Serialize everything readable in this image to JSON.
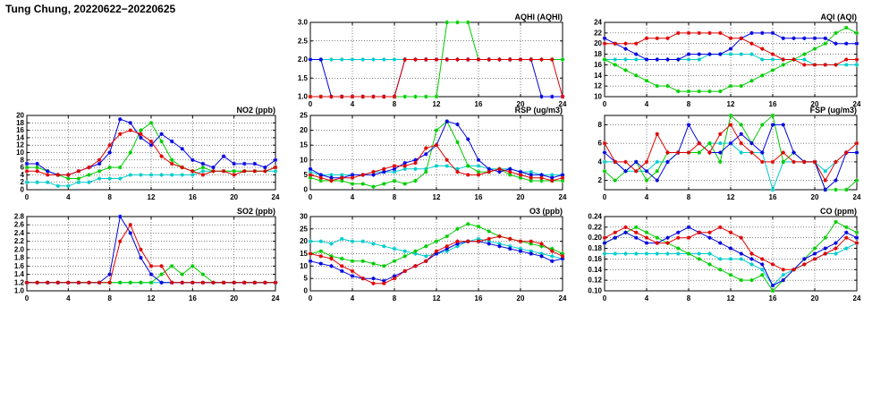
{
  "page": {
    "title": "Tung Chung, 20220622−20220625"
  },
  "hours": [
    0,
    1,
    2,
    3,
    4,
    5,
    6,
    7,
    8,
    9,
    10,
    11,
    12,
    13,
    14,
    15,
    16,
    17,
    18,
    19,
    20,
    21,
    22,
    23,
    24
  ],
  "x_ticks": [
    0,
    4,
    8,
    12,
    16,
    20,
    24
  ],
  "colors": {
    "blue": "#0000e0",
    "red": "#e00000",
    "green": "#00cc00",
    "cyan": "#00cccc"
  },
  "chart_data": [
    {
      "id": "aqhi",
      "type": "line",
      "title": "AQHI (AQHI)",
      "ylim": [
        1,
        3
      ],
      "yticks": [
        1,
        1.5,
        2,
        2.5,
        3
      ],
      "ydec": 1,
      "series": [
        {
          "name": "cyan",
          "color": "cyan",
          "values": [
            2,
            2,
            2,
            2,
            2,
            2,
            2,
            2,
            2,
            2,
            2,
            2,
            2,
            2,
            2,
            2,
            2,
            2,
            2,
            2,
            2,
            2,
            2,
            2,
            2
          ]
        },
        {
          "name": "green",
          "color": "green",
          "values": [
            1,
            1,
            1,
            1,
            1,
            1,
            1,
            1,
            1,
            1,
            1,
            1,
            1,
            3,
            3,
            3,
            2,
            2,
            2,
            2,
            2,
            2,
            2,
            2,
            2
          ]
        },
        {
          "name": "blue",
          "color": "blue",
          "values": [
            2,
            2,
            1,
            1,
            1,
            1,
            1,
            1,
            1,
            2,
            2,
            2,
            2,
            2,
            2,
            2,
            2,
            2,
            2,
            2,
            2,
            2,
            1,
            1,
            1
          ]
        },
        {
          "name": "red",
          "color": "red",
          "values": [
            1,
            1,
            1,
            1,
            1,
            1,
            1,
            1,
            1,
            2,
            2,
            2,
            2,
            2,
            2,
            2,
            2,
            2,
            2,
            2,
            2,
            2,
            2,
            2,
            1
          ]
        }
      ]
    },
    {
      "id": "aqi",
      "type": "line",
      "title": "AQI (AQI)",
      "ylim": [
        10,
        24
      ],
      "yticks": [
        10,
        12,
        14,
        16,
        18,
        20,
        22,
        24
      ],
      "ydec": 0,
      "series": [
        {
          "name": "cyan",
          "color": "cyan",
          "values": [
            17,
            17,
            17,
            17,
            17,
            17,
            17,
            17,
            17,
            17,
            18,
            18,
            18,
            18,
            18,
            17,
            17,
            17,
            17,
            17,
            16,
            16,
            16,
            16,
            16
          ]
        },
        {
          "name": "green",
          "color": "green",
          "values": [
            17,
            16,
            15,
            14,
            13,
            12,
            12,
            11,
            11,
            11,
            11,
            11,
            12,
            12,
            13,
            14,
            15,
            16,
            17,
            18,
            19,
            20,
            22,
            23,
            22
          ]
        },
        {
          "name": "blue",
          "color": "blue",
          "values": [
            21,
            20,
            19,
            18,
            17,
            17,
            17,
            17,
            18,
            18,
            18,
            18,
            19,
            21,
            22,
            22,
            22,
            21,
            21,
            21,
            21,
            21,
            20,
            20,
            20
          ]
        },
        {
          "name": "red",
          "color": "red",
          "values": [
            20,
            20,
            20,
            20,
            21,
            21,
            21,
            22,
            22,
            22,
            22,
            22,
            21,
            21,
            20,
            19,
            18,
            17,
            17,
            16,
            16,
            16,
            16,
            17,
            17
          ]
        }
      ]
    },
    {
      "id": "no2",
      "type": "line",
      "title": "NO2 (ppb)",
      "ylim": [
        0,
        20
      ],
      "yticks": [
        0,
        2,
        4,
        6,
        8,
        10,
        12,
        14,
        16,
        18,
        20
      ],
      "ydec": 0,
      "series": [
        {
          "name": "cyan",
          "color": "cyan",
          "values": [
            2,
            2,
            2,
            1,
            1,
            2,
            2,
            3,
            3,
            3,
            4,
            4,
            4,
            4,
            4,
            4,
            4,
            5,
            5,
            5,
            5,
            5,
            5,
            5,
            5
          ]
        },
        {
          "name": "green",
          "color": "green",
          "values": [
            6,
            6,
            5,
            4,
            3,
            3,
            4,
            5,
            6,
            6,
            10,
            16,
            18,
            13,
            8,
            6,
            5,
            6,
            5,
            5,
            5,
            5,
            5,
            5,
            6
          ]
        },
        {
          "name": "blue",
          "color": "blue",
          "values": [
            7,
            7,
            5,
            4,
            4,
            5,
            6,
            7,
            10,
            19,
            18,
            14,
            12,
            15,
            13,
            11,
            8,
            7,
            6,
            9,
            7,
            7,
            7,
            6,
            8
          ]
        },
        {
          "name": "red",
          "color": "red",
          "values": [
            5,
            5,
            4,
            4,
            4,
            5,
            6,
            8,
            12,
            15,
            16,
            15,
            13,
            9,
            7,
            6,
            5,
            4,
            5,
            5,
            4,
            5,
            5,
            5,
            6
          ]
        }
      ]
    },
    {
      "id": "rsp",
      "type": "line",
      "title": "RSP (ug/m3)",
      "ylim": [
        0,
        25
      ],
      "yticks": [
        0,
        5,
        10,
        15,
        20,
        25
      ],
      "ydec": 0,
      "series": [
        {
          "name": "cyan",
          "color": "cyan",
          "values": [
            6,
            5,
            5,
            5,
            5,
            5,
            6,
            6,
            6,
            7,
            7,
            7,
            8,
            8,
            7,
            8,
            8,
            7,
            7,
            7,
            6,
            6,
            5,
            5,
            5
          ]
        },
        {
          "name": "green",
          "color": "green",
          "values": [
            4,
            3,
            3,
            3,
            2,
            2,
            1,
            2,
            3,
            2,
            3,
            6,
            20,
            23,
            16,
            8,
            6,
            6,
            7,
            5,
            4,
            3,
            3,
            3,
            3
          ]
        },
        {
          "name": "blue",
          "color": "blue",
          "values": [
            7,
            5,
            4,
            4,
            5,
            5,
            5,
            6,
            7,
            9,
            10,
            12,
            15,
            23,
            22,
            17,
            10,
            7,
            6,
            7,
            6,
            5,
            5,
            4,
            5
          ]
        },
        {
          "name": "red",
          "color": "red",
          "values": [
            5,
            4,
            3,
            4,
            4,
            5,
            6,
            7,
            8,
            8,
            9,
            14,
            15,
            10,
            6,
            5,
            5,
            6,
            7,
            6,
            5,
            4,
            4,
            3,
            4
          ]
        }
      ]
    },
    {
      "id": "fsp",
      "type": "line",
      "title": "FSP (ug/m3)",
      "ylim": [
        1,
        9
      ],
      "yticks": [
        2,
        4,
        6,
        8
      ],
      "ydec": 0,
      "series": [
        {
          "name": "cyan",
          "color": "cyan",
          "values": [
            4,
            4,
            3,
            3,
            3,
            4,
            4,
            5,
            5,
            5,
            6,
            6,
            6,
            5,
            5,
            5,
            1,
            4,
            4,
            4,
            4,
            3,
            4,
            5,
            5
          ]
        },
        {
          "name": "green",
          "color": "green",
          "values": [
            3,
            2,
            3,
            4,
            2,
            3,
            5,
            5,
            5,
            5,
            6,
            4,
            9,
            8,
            6,
            8,
            9,
            4,
            5,
            4,
            4,
            1,
            1,
            1,
            2
          ]
        },
        {
          "name": "blue",
          "color": "blue",
          "values": [
            5,
            4,
            3,
            4,
            3,
            2,
            4,
            5,
            8,
            6,
            5,
            5,
            6,
            7,
            6,
            5,
            8,
            8,
            5,
            4,
            4,
            1,
            2,
            5,
            5
          ]
        },
        {
          "name": "red",
          "color": "red",
          "values": [
            6,
            4,
            4,
            3,
            4,
            7,
            5,
            5,
            5,
            6,
            5,
            7,
            8,
            6,
            5,
            4,
            4,
            5,
            4,
            4,
            4,
            2,
            4,
            5,
            6
          ]
        }
      ]
    },
    {
      "id": "so2",
      "type": "line",
      "title": "SO2 (ppb)",
      "ylim": [
        1,
        2.8
      ],
      "yticks": [
        1,
        1.2,
        1.4,
        1.6,
        1.8,
        2,
        2.2,
        2.4,
        2.6,
        2.8
      ],
      "ydec": 1,
      "series": [
        {
          "name": "cyan",
          "color": "cyan",
          "values": [
            1.2,
            1.2,
            1.2,
            1.2,
            1.2,
            1.2,
            1.2,
            1.2,
            1.2,
            1.2,
            1.2,
            1.2,
            1.2,
            1.2,
            1.2,
            1.2,
            1.2,
            1.2,
            1.2,
            1.2,
            1.2,
            1.2,
            1.2,
            1.2,
            1.2
          ]
        },
        {
          "name": "green",
          "color": "green",
          "values": [
            1.2,
            1.2,
            1.2,
            1.2,
            1.2,
            1.2,
            1.2,
            1.2,
            1.2,
            1.2,
            1.2,
            1.2,
            1.2,
            1.4,
            1.6,
            1.4,
            1.6,
            1.4,
            1.2,
            1.2,
            1.2,
            1.2,
            1.2,
            1.2,
            1.2
          ]
        },
        {
          "name": "blue",
          "color": "blue",
          "values": [
            1.2,
            1.2,
            1.2,
            1.2,
            1.2,
            1.2,
            1.2,
            1.2,
            1.4,
            2.8,
            2.4,
            1.8,
            1.4,
            1.2,
            1.2,
            1.2,
            1.2,
            1.2,
            1.2,
            1.2,
            1.2,
            1.2,
            1.2,
            1.2,
            1.2
          ]
        },
        {
          "name": "red",
          "color": "red",
          "values": [
            1.2,
            1.2,
            1.2,
            1.2,
            1.2,
            1.2,
            1.2,
            1.2,
            1.2,
            2.2,
            2.6,
            2.0,
            1.6,
            1.6,
            1.2,
            1.2,
            1.2,
            1.2,
            1.2,
            1.2,
            1.2,
            1.2,
            1.2,
            1.2,
            1.2
          ]
        }
      ]
    },
    {
      "id": "o3",
      "type": "line",
      "title": "O3 (ppb)",
      "ylim": [
        0,
        30
      ],
      "yticks": [
        0,
        5,
        10,
        15,
        20,
        25,
        30
      ],
      "ydec": 0,
      "series": [
        {
          "name": "cyan",
          "color": "cyan",
          "values": [
            20,
            20,
            19,
            21,
            20,
            20,
            19,
            18,
            17,
            16,
            15,
            14,
            15,
            16,
            18,
            20,
            21,
            20,
            19,
            18,
            17,
            16,
            15,
            14,
            13
          ]
        },
        {
          "name": "green",
          "color": "green",
          "values": [
            15,
            16,
            14,
            13,
            12,
            12,
            11,
            10,
            12,
            14,
            16,
            18,
            20,
            22,
            25,
            27,
            26,
            24,
            22,
            21,
            20,
            19,
            18,
            17,
            15
          ]
        },
        {
          "name": "blue",
          "color": "blue",
          "values": [
            12,
            11,
            10,
            8,
            6,
            5,
            5,
            4,
            6,
            8,
            10,
            12,
            15,
            17,
            19,
            20,
            20,
            19,
            18,
            17,
            16,
            15,
            14,
            12,
            13
          ]
        },
        {
          "name": "red",
          "color": "red",
          "values": [
            15,
            14,
            13,
            10,
            8,
            5,
            3,
            3,
            5,
            8,
            10,
            12,
            16,
            18,
            20,
            20,
            20,
            21,
            22,
            21,
            20,
            20,
            19,
            16,
            14
          ]
        }
      ]
    },
    {
      "id": "co",
      "type": "line",
      "title": "CO (ppm)",
      "ylim": [
        0.1,
        0.24
      ],
      "yticks": [
        0.1,
        0.12,
        0.14,
        0.16,
        0.18,
        0.2,
        0.22,
        0.24
      ],
      "ydec": 2,
      "series": [
        {
          "name": "cyan",
          "color": "cyan",
          "values": [
            0.17,
            0.17,
            0.17,
            0.17,
            0.17,
            0.17,
            0.17,
            0.17,
            0.17,
            0.17,
            0.17,
            0.16,
            0.16,
            0.16,
            0.15,
            0.14,
            0.11,
            0.13,
            0.14,
            0.15,
            0.16,
            0.17,
            0.17,
            0.18,
            0.19
          ]
        },
        {
          "name": "green",
          "color": "green",
          "values": [
            0.19,
            0.2,
            0.21,
            0.22,
            0.21,
            0.2,
            0.19,
            0.18,
            0.17,
            0.16,
            0.15,
            0.14,
            0.13,
            0.12,
            0.12,
            0.13,
            0.1,
            0.12,
            0.14,
            0.16,
            0.18,
            0.2,
            0.23,
            0.22,
            0.21
          ]
        },
        {
          "name": "blue",
          "color": "blue",
          "values": [
            0.19,
            0.2,
            0.21,
            0.2,
            0.19,
            0.19,
            0.2,
            0.21,
            0.22,
            0.21,
            0.2,
            0.19,
            0.18,
            0.17,
            0.16,
            0.15,
            0.11,
            0.12,
            0.14,
            0.16,
            0.17,
            0.18,
            0.19,
            0.21,
            0.2
          ]
        },
        {
          "name": "red",
          "color": "red",
          "values": [
            0.2,
            0.21,
            0.22,
            0.21,
            0.2,
            0.19,
            0.19,
            0.2,
            0.2,
            0.21,
            0.21,
            0.22,
            0.21,
            0.2,
            0.17,
            0.16,
            0.15,
            0.14,
            0.14,
            0.15,
            0.16,
            0.17,
            0.18,
            0.2,
            0.19
          ]
        }
      ]
    }
  ]
}
